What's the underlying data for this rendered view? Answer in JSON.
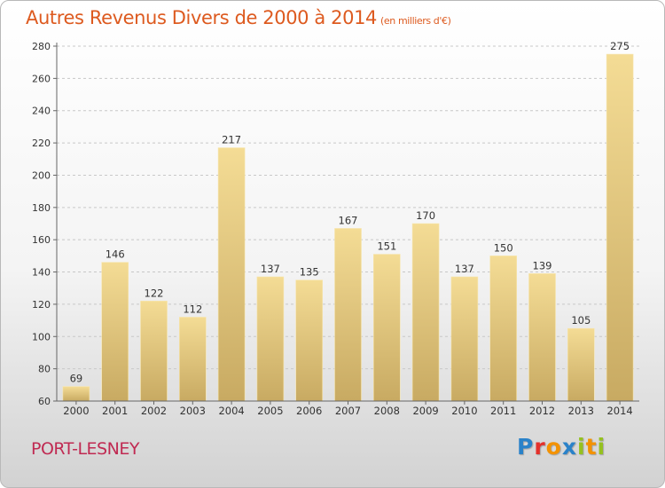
{
  "header": {
    "title": "Autres Revenus Divers de 2000 à 2014",
    "subtitle": "(en milliers d'€)"
  },
  "footer": {
    "location": "PORT-LESNEY",
    "brand_letters": [
      {
        "ch": "P",
        "color": "#2a82c9"
      },
      {
        "ch": "r",
        "color": "#e4312b"
      },
      {
        "ch": "o",
        "color": "#f39200"
      },
      {
        "ch": "x",
        "color": "#2a82c9"
      },
      {
        "ch": "i",
        "color": "#95c11f"
      },
      {
        "ch": "t",
        "color": "#f39200"
      },
      {
        "ch": "i",
        "color": "#95c11f"
      }
    ]
  },
  "colors": {
    "title": "#dd5a1f",
    "location": "#c02a52",
    "bar_top": "#f4dc95",
    "bar_bottom": "#c8aa62",
    "grid": "#c8c8c8"
  },
  "chart_data": {
    "type": "bar",
    "title": "Autres Revenus Divers de 2000 à 2014",
    "subtitle": "(en milliers d'€)",
    "categories": [
      "2000",
      "2001",
      "2002",
      "2003",
      "2004",
      "2005",
      "2006",
      "2007",
      "2008",
      "2009",
      "2010",
      "2011",
      "2012",
      "2013",
      "2014"
    ],
    "values": [
      69,
      146,
      122,
      112,
      217,
      137,
      135,
      167,
      151,
      170,
      137,
      150,
      139,
      105,
      275
    ],
    "ylim": [
      60,
      280
    ],
    "yticks": [
      60,
      80,
      100,
      120,
      140,
      160,
      180,
      200,
      220,
      240,
      260,
      280
    ],
    "grid": true,
    "grid_style": "dashed-horizontal",
    "data_labels": true
  }
}
